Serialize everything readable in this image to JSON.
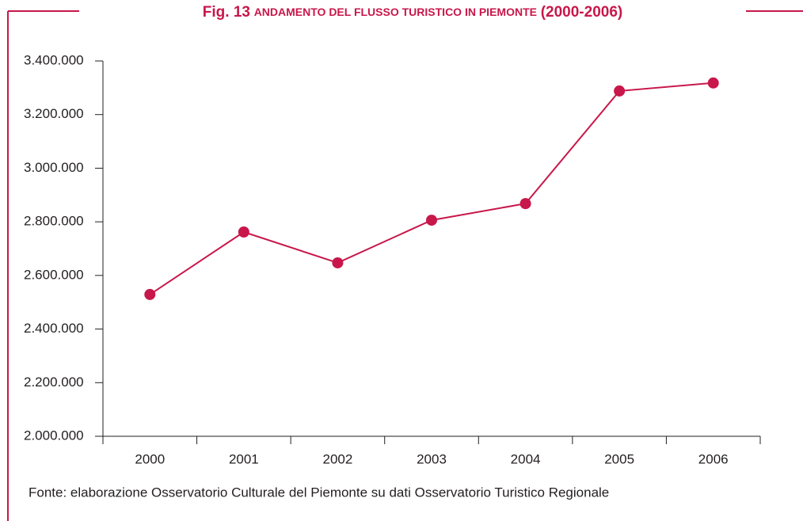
{
  "chart_data": {
    "type": "line",
    "title": [
      "Fig. 13",
      "ANDAMENTO DEL FLUSSO TURISTICO IN PIEMONTE",
      "(2000-2006)"
    ],
    "categories": [
      "2000",
      "2001",
      "2002",
      "2003",
      "2004",
      "2005",
      "2006"
    ],
    "series": [
      {
        "name": "Flusso turistico",
        "color": "#c8174a",
        "values": [
          2529000,
          2762000,
          2647000,
          2806000,
          2868000,
          3288000,
          3318000
        ]
      }
    ],
    "ylim": [
      2000000,
      3400000
    ],
    "yticks": [
      {
        "value": 2000000,
        "label": "2.000.000"
      },
      {
        "value": 2200000,
        "label": "2.200.000"
      },
      {
        "value": 2400000,
        "label": "2.400.000"
      },
      {
        "value": 2600000,
        "label": "2.600.000"
      },
      {
        "value": 2800000,
        "label": "2.800.000"
      },
      {
        "value": 3000000,
        "label": "3.000.000"
      },
      {
        "value": 3200000,
        "label": "3.200.000"
      },
      {
        "value": 3400000,
        "label": "3.400.000"
      }
    ],
    "source": "Fonte: elaborazione Osservatorio Culturale del Piemonte su dati Osservatorio Turistico Regionale"
  }
}
